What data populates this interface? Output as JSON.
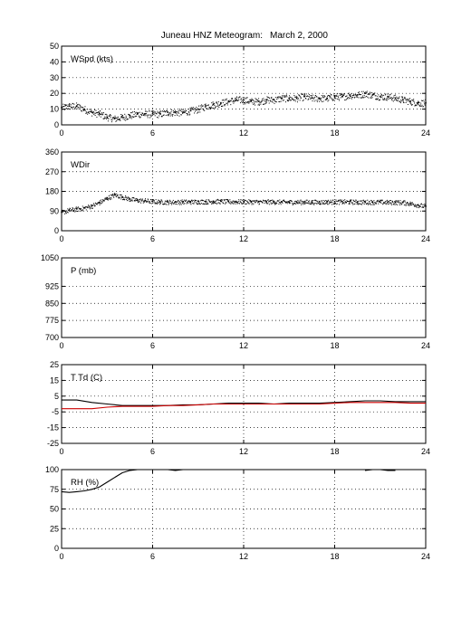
{
  "title_station": "Juneau HNZ Meteogram:",
  "title_date": "March  2, 2000",
  "chart_data": [
    {
      "type": "scatter",
      "label": "WSpd (kts)",
      "xlim": [
        0,
        24
      ],
      "xticks": [
        0,
        6,
        12,
        18,
        24
      ],
      "ylim": [
        0,
        50
      ],
      "yticks": [
        0,
        10,
        20,
        30,
        40,
        50
      ],
      "grid": true,
      "series": [
        {
          "color": "#000000",
          "marker": "dot",
          "x": [
            0,
            0.5,
            1,
            1.5,
            2,
            2.5,
            3,
            3.5,
            4,
            4.5,
            5,
            5.5,
            6,
            6.5,
            7,
            7.5,
            8,
            8.5,
            9,
            9.5,
            10,
            10.5,
            11,
            11.5,
            12,
            12.5,
            13,
            13.5,
            14,
            14.5,
            15,
            15.5,
            16,
            16.5,
            17,
            17.5,
            18,
            18.5,
            19,
            19.5,
            20,
            20.5,
            21,
            21.5,
            22,
            22.5,
            23,
            23.5,
            24
          ],
          "values": [
            11,
            12,
            12,
            10,
            8,
            7,
            5,
            4,
            5,
            6,
            7,
            7,
            7,
            7,
            8,
            8,
            8,
            9,
            10,
            12,
            13,
            14,
            15,
            16,
            16,
            15,
            15,
            16,
            16,
            17,
            17,
            17,
            18,
            17,
            17,
            17,
            18,
            18,
            19,
            19,
            20,
            19,
            18,
            18,
            17,
            16,
            15,
            14,
            14
          ]
        }
      ]
    },
    {
      "type": "scatter",
      "label": "WDir",
      "xlim": [
        0,
        24
      ],
      "xticks": [
        0,
        6,
        12,
        18,
        24
      ],
      "ylim": [
        0,
        360
      ],
      "yticks": [
        0,
        90,
        180,
        270,
        360
      ],
      "grid": true,
      "series": [
        {
          "color": "#000000",
          "marker": "dot",
          "x": [
            0,
            0.5,
            1,
            1.5,
            2,
            2.5,
            3,
            3.5,
            4,
            4.5,
            5,
            5.5,
            6,
            6.5,
            7,
            7.5,
            8,
            8.5,
            9,
            9.5,
            10,
            10.5,
            11,
            11.5,
            12,
            12.5,
            13,
            13.5,
            14,
            14.5,
            15,
            15.5,
            16,
            16.5,
            17,
            17.5,
            18,
            18.5,
            19,
            19.5,
            20,
            20.5,
            21,
            21.5,
            22,
            22.5,
            23,
            23.5,
            24
          ],
          "values": [
            85,
            95,
            100,
            105,
            115,
            130,
            150,
            165,
            155,
            145,
            140,
            138,
            135,
            133,
            132,
            132,
            133,
            133,
            134,
            134,
            135,
            135,
            134,
            134,
            134,
            133,
            133,
            133,
            133,
            132,
            132,
            132,
            132,
            132,
            132,
            133,
            133,
            133,
            133,
            132,
            132,
            132,
            132,
            131,
            131,
            130,
            125,
            118,
            112
          ]
        }
      ]
    },
    {
      "type": "line",
      "label": "P (mb)",
      "xlim": [
        0,
        24
      ],
      "xticks": [
        0,
        6,
        12,
        18,
        24
      ],
      "ylim": [
        700,
        1050
      ],
      "yticks": [
        700,
        775,
        850,
        925,
        1050
      ],
      "grid": true,
      "series": []
    },
    {
      "type": "line",
      "label": "T Td (C)",
      "xlim": [
        0,
        24
      ],
      "xticks": [
        0,
        6,
        12,
        18,
        24
      ],
      "ylim": [
        -25,
        25
      ],
      "yticks": [
        -25,
        -15,
        -5,
        5,
        15,
        25
      ],
      "grid": true,
      "series": [
        {
          "color": "#000000",
          "x": [
            0,
            1,
            2,
            3,
            4,
            5,
            6,
            7,
            8,
            9,
            10,
            11,
            12,
            13,
            14,
            15,
            16,
            17,
            18,
            19,
            20,
            21,
            22,
            23,
            24
          ],
          "values": [
            2.5,
            2.5,
            1,
            0,
            -1,
            -1,
            -1,
            -1,
            -0.5,
            -0.5,
            0,
            0.5,
            0.5,
            0.5,
            0,
            0.5,
            0.5,
            0.5,
            1,
            1.5,
            2,
            2,
            1.5,
            1.5,
            1.5
          ]
        },
        {
          "color": "#cc0000",
          "x": [
            0,
            1,
            2,
            3,
            4,
            5,
            6,
            7,
            8,
            9,
            10,
            11,
            12,
            13,
            14,
            15,
            16,
            17,
            18,
            19,
            20,
            21,
            22,
            23,
            24
          ],
          "values": [
            -3,
            -3,
            -3,
            -2,
            -1.5,
            -1.5,
            -1.5,
            -1,
            -1,
            -0.5,
            0,
            0,
            0,
            0,
            0,
            0,
            0,
            0,
            0.5,
            1,
            1,
            1,
            1,
            0.5,
            0.5
          ]
        }
      ]
    },
    {
      "type": "line",
      "label": "RH (%)",
      "xlim": [
        0,
        24
      ],
      "xticks": [
        0,
        6,
        12,
        18,
        24
      ],
      "ylim": [
        0,
        100
      ],
      "yticks": [
        0,
        25,
        50,
        75,
        100
      ],
      "grid": true,
      "series": [
        {
          "color": "#000000",
          "x": [
            0,
            0.5,
            1,
            1.5,
            2,
            2.5,
            3,
            3.5,
            4,
            4.5,
            5,
            5.5,
            6,
            6.5,
            7,
            7.5,
            8
          ],
          "values": [
            72,
            71,
            72,
            73,
            75,
            78,
            84,
            90,
            96,
            99,
            100,
            100,
            100,
            100,
            100,
            99,
            100
          ]
        },
        {
          "color": "#000000",
          "x": [
            20,
            20.5,
            21,
            21.5,
            22
          ],
          "values": [
            99,
            100,
            100,
            99,
            99
          ]
        }
      ]
    }
  ]
}
